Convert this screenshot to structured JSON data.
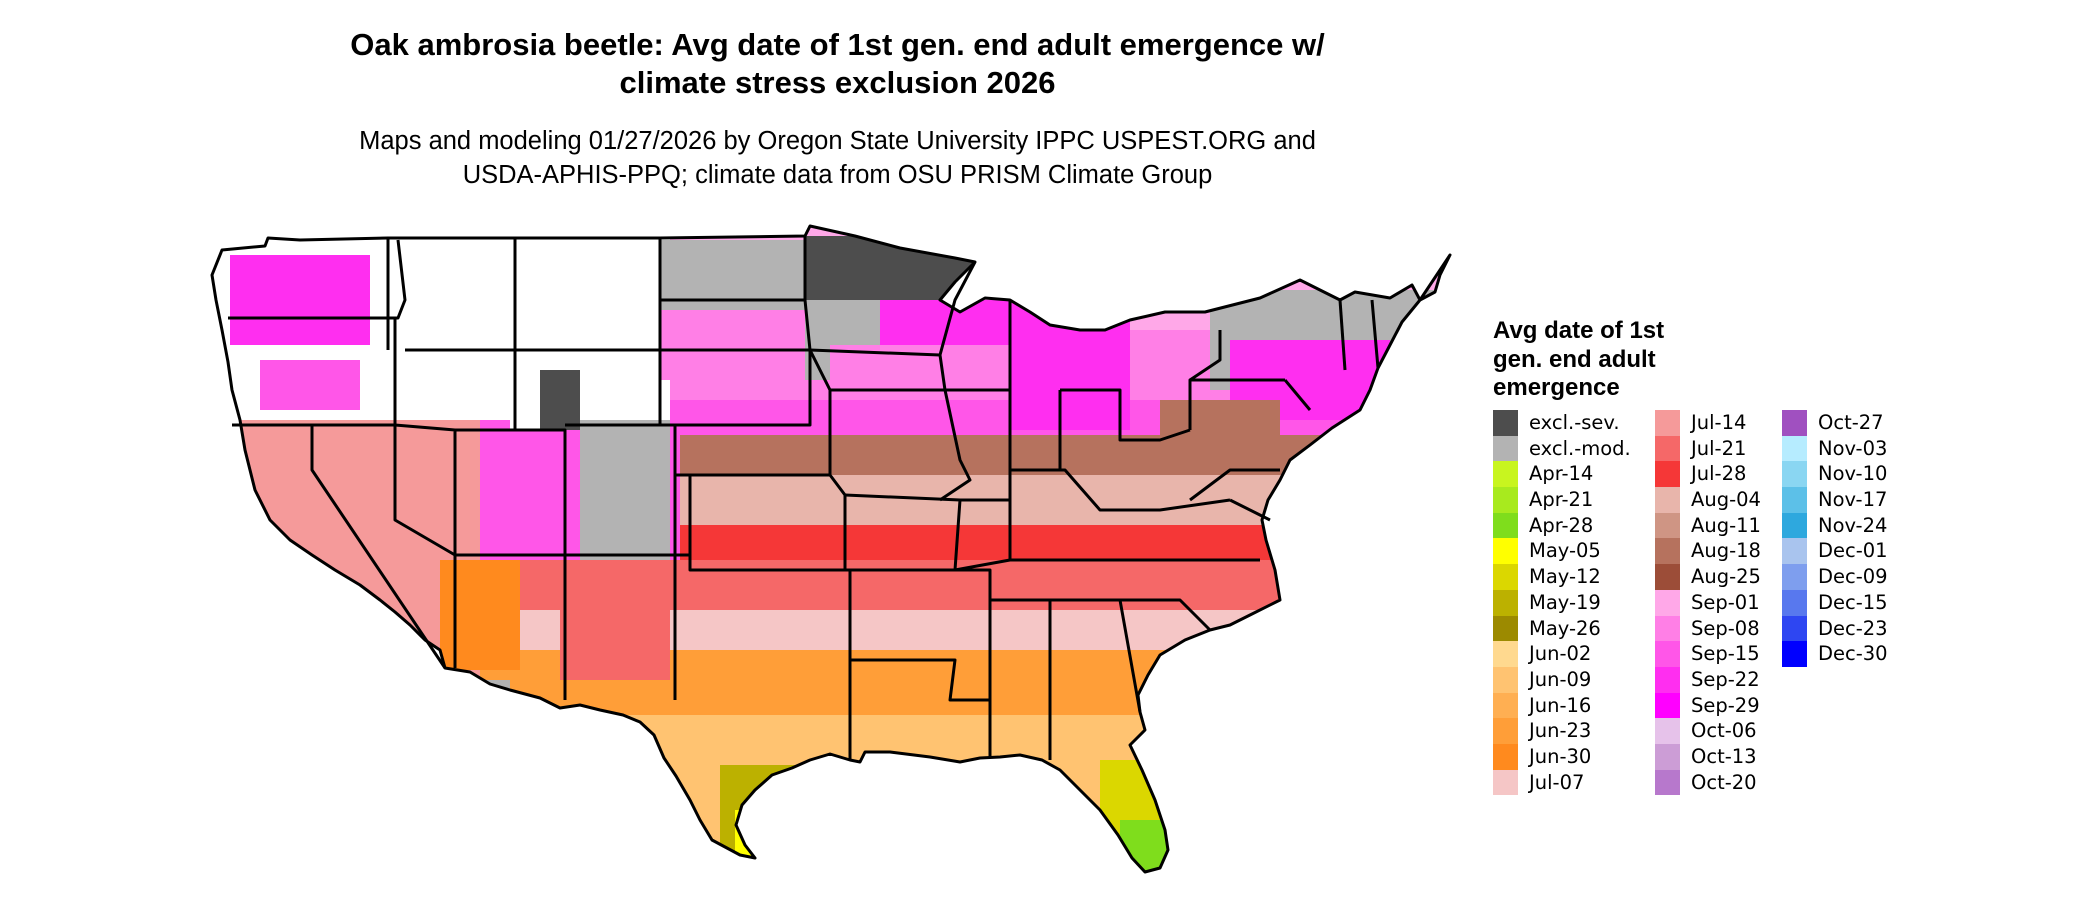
{
  "title_lines": [
    "Oak ambrosia beetle: Avg date of 1st gen. end adult emergence w/",
    "climate stress exclusion 2026"
  ],
  "subtitle_lines": [
    "Maps and modeling 01/27/2026 by Oregon State University IPPC USPEST.ORG and",
    "USDA-APHIS-PPQ; climate data from OSU PRISM Climate Group"
  ],
  "legend": {
    "title_lines": [
      "Avg date of 1st",
      "gen. end adult",
      "emergence"
    ],
    "columns": [
      [
        {
          "label": "excl.-sev.",
          "color": "#4d4d4d"
        },
        {
          "label": "excl.-mod.",
          "color": "#b3b3b3"
        },
        {
          "label": "Apr-14",
          "color": "#c8f51f"
        },
        {
          "label": "Apr-21",
          "color": "#a8ea1e"
        },
        {
          "label": "Apr-28",
          "color": "#7fdd1c"
        },
        {
          "label": "May-05",
          "color": "#ffff00"
        },
        {
          "label": "May-12",
          "color": "#dbd700"
        },
        {
          "label": "May-19",
          "color": "#bcb100"
        },
        {
          "label": "May-26",
          "color": "#9c8a00"
        },
        {
          "label": "Jun-02",
          "color": "#ffd98f"
        },
        {
          "label": "Jun-09",
          "color": "#ffc371"
        },
        {
          "label": "Jun-16",
          "color": "#ffaf52"
        },
        {
          "label": "Jun-23",
          "color": "#ff9e38"
        },
        {
          "label": "Jun-30",
          "color": "#ff8a1e"
        },
        {
          "label": "Jul-07",
          "color": "#f5c6c6"
        }
      ],
      [
        {
          "label": "Jul-14",
          "color": "#f59a9a"
        },
        {
          "label": "Jul-21",
          "color": "#f56868"
        },
        {
          "label": "Jul-28",
          "color": "#f53737"
        },
        {
          "label": "Aug-04",
          "color": "#e8b5ab"
        },
        {
          "label": "Aug-11",
          "color": "#cf9584"
        },
        {
          "label": "Aug-18",
          "color": "#b6725e"
        },
        {
          "label": "Aug-25",
          "color": "#9c4d38"
        },
        {
          "label": "Sep-01",
          "color": "#ffa8e8"
        },
        {
          "label": "Sep-08",
          "color": "#ff7fe6"
        },
        {
          "label": "Sep-15",
          "color": "#ff56e8"
        },
        {
          "label": "Sep-22",
          "color": "#ff2ef0"
        },
        {
          "label": "Sep-29",
          "color": "#ff00ff"
        },
        {
          "label": "Oct-06",
          "color": "#e6c2ea"
        },
        {
          "label": "Oct-13",
          "color": "#cc9dd6"
        },
        {
          "label": "Oct-20",
          "color": "#b778cc"
        }
      ],
      [
        {
          "label": "Oct-27",
          "color": "#a050c0"
        },
        {
          "label": "Nov-03",
          "color": "#b6ecff"
        },
        {
          "label": "Nov-10",
          "color": "#8ad6f2"
        },
        {
          "label": "Nov-17",
          "color": "#5cc0e8"
        },
        {
          "label": "Nov-24",
          "color": "#2ea8de"
        },
        {
          "label": "Dec-01",
          "color": "#a9c4ee"
        },
        {
          "label": "Dec-09",
          "color": "#7e9eee"
        },
        {
          "label": "Dec-15",
          "color": "#5878ee"
        },
        {
          "label": "Dec-23",
          "color": "#2e46f2"
        },
        {
          "label": "Dec-30",
          "color": "#0000ff"
        }
      ]
    ]
  }
}
